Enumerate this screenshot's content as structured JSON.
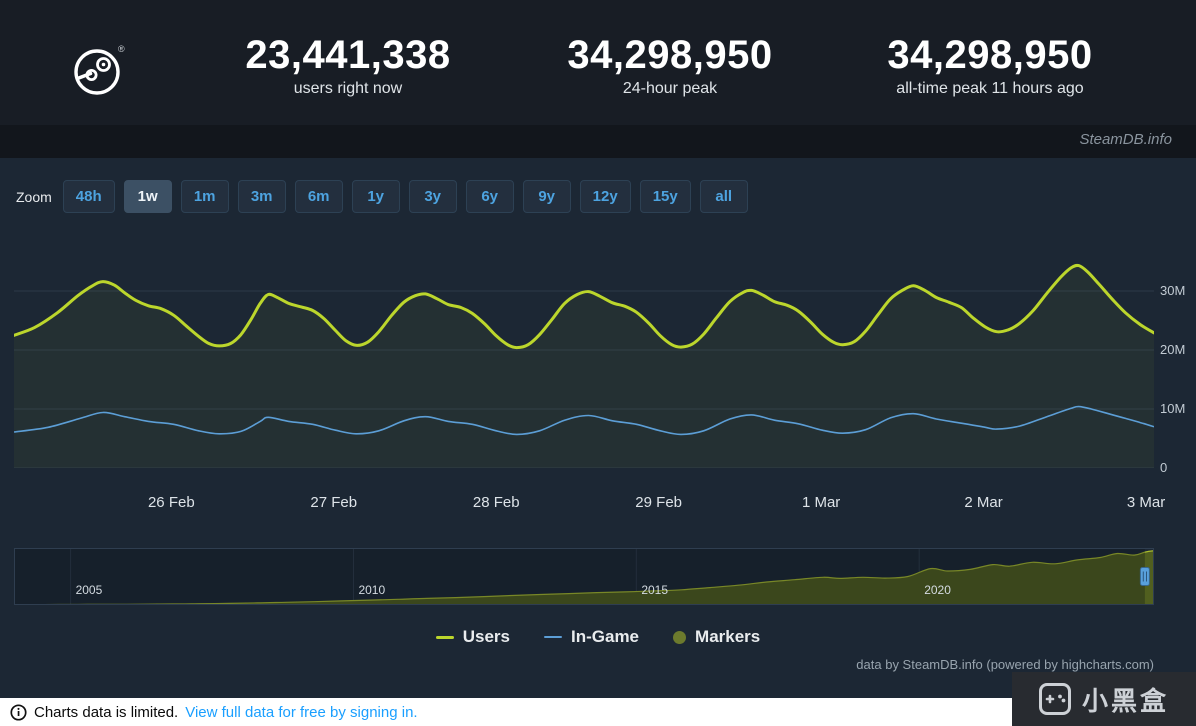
{
  "header": {
    "stats": [
      {
        "value": "23,441,338",
        "label": "users right now"
      },
      {
        "value": "34,298,950",
        "label": "24-hour peak"
      },
      {
        "value": "34,298,950",
        "label": "all-time peak 11 hours ago"
      }
    ],
    "brand": "SteamDB.info"
  },
  "zoom": {
    "label": "Zoom",
    "selected": "1w",
    "options": [
      "48h",
      "1w",
      "1m",
      "3m",
      "6m",
      "1y",
      "3y",
      "6y",
      "9y",
      "12y",
      "15y",
      "all"
    ]
  },
  "chart_data": {
    "type": "line",
    "x_categories": [
      "26 Feb",
      "27 Feb",
      "28 Feb",
      "29 Feb",
      "1 Mar",
      "2 Mar",
      "3 Mar"
    ],
    "x_first_tick_fraction": 0.138,
    "x_tick_step_fraction": 0.1425,
    "ylim": [
      0,
      40
    ],
    "y_unit": "M",
    "yticks": [
      {
        "value": 30,
        "label": "30M"
      },
      {
        "value": 20,
        "label": "20M"
      },
      {
        "value": 10,
        "label": "10M"
      },
      {
        "value": 0,
        "label": "0"
      }
    ],
    "series": [
      {
        "name": "Users",
        "color": "#bcd62c",
        "width": 3,
        "points": [
          [
            0.0,
            22.5
          ],
          [
            0.018,
            23.8
          ],
          [
            0.038,
            26.3
          ],
          [
            0.056,
            29.2
          ],
          [
            0.069,
            30.9
          ],
          [
            0.078,
            31.6
          ],
          [
            0.088,
            31.0
          ],
          [
            0.097,
            29.7
          ],
          [
            0.107,
            28.4
          ],
          [
            0.118,
            27.5
          ],
          [
            0.129,
            27.0
          ],
          [
            0.14,
            25.9
          ],
          [
            0.151,
            24.1
          ],
          [
            0.162,
            22.3
          ],
          [
            0.171,
            21.1
          ],
          [
            0.18,
            20.7
          ],
          [
            0.19,
            21.1
          ],
          [
            0.199,
            22.6
          ],
          [
            0.208,
            25.2
          ],
          [
            0.216,
            27.9
          ],
          [
            0.223,
            29.4
          ],
          [
            0.231,
            28.9
          ],
          [
            0.241,
            27.9
          ],
          [
            0.252,
            27.3
          ],
          [
            0.262,
            26.7
          ],
          [
            0.272,
            25.3
          ],
          [
            0.282,
            23.3
          ],
          [
            0.291,
            21.6
          ],
          [
            0.3,
            20.8
          ],
          [
            0.31,
            21.3
          ],
          [
            0.32,
            23.1
          ],
          [
            0.331,
            25.8
          ],
          [
            0.342,
            28.1
          ],
          [
            0.352,
            29.2
          ],
          [
            0.361,
            29.5
          ],
          [
            0.371,
            28.7
          ],
          [
            0.381,
            27.7
          ],
          [
            0.392,
            27.2
          ],
          [
            0.402,
            26.2
          ],
          [
            0.413,
            24.4
          ],
          [
            0.423,
            22.4
          ],
          [
            0.433,
            20.9
          ],
          [
            0.441,
            20.4
          ],
          [
            0.451,
            20.9
          ],
          [
            0.461,
            22.6
          ],
          [
            0.472,
            25.2
          ],
          [
            0.483,
            27.9
          ],
          [
            0.494,
            29.4
          ],
          [
            0.504,
            29.9
          ],
          [
            0.514,
            29.1
          ],
          [
            0.525,
            28.0
          ],
          [
            0.536,
            27.4
          ],
          [
            0.546,
            26.4
          ],
          [
            0.557,
            24.5
          ],
          [
            0.567,
            22.4
          ],
          [
            0.577,
            20.9
          ],
          [
            0.585,
            20.5
          ],
          [
            0.595,
            21.0
          ],
          [
            0.605,
            22.7
          ],
          [
            0.616,
            25.4
          ],
          [
            0.628,
            28.2
          ],
          [
            0.639,
            29.7
          ],
          [
            0.647,
            30.1
          ],
          [
            0.657,
            29.3
          ],
          [
            0.667,
            28.2
          ],
          [
            0.678,
            27.6
          ],
          [
            0.688,
            26.6
          ],
          [
            0.699,
            24.7
          ],
          [
            0.709,
            22.7
          ],
          [
            0.719,
            21.3
          ],
          [
            0.727,
            20.9
          ],
          [
            0.737,
            21.4
          ],
          [
            0.747,
            23.2
          ],
          [
            0.758,
            26.0
          ],
          [
            0.769,
            28.7
          ],
          [
            0.78,
            30.2
          ],
          [
            0.789,
            30.9
          ],
          [
            0.799,
            30.1
          ],
          [
            0.809,
            28.9
          ],
          [
            0.82,
            28.1
          ],
          [
            0.831,
            27.2
          ],
          [
            0.841,
            25.5
          ],
          [
            0.852,
            23.9
          ],
          [
            0.862,
            23.1
          ],
          [
            0.872,
            23.4
          ],
          [
            0.882,
            24.5
          ],
          [
            0.894,
            26.7
          ],
          [
            0.906,
            29.6
          ],
          [
            0.918,
            32.3
          ],
          [
            0.927,
            33.9
          ],
          [
            0.934,
            34.3
          ],
          [
            0.942,
            33.2
          ],
          [
            0.952,
            31.1
          ],
          [
            0.963,
            28.7
          ],
          [
            0.975,
            26.3
          ],
          [
            0.988,
            24.3
          ],
          [
            1.0,
            22.9
          ]
        ]
      },
      {
        "name": "In-Game",
        "color": "#5c9ed6",
        "width": 1.6,
        "points": [
          [
            0.0,
            6.1
          ],
          [
            0.03,
            6.9
          ],
          [
            0.058,
            8.4
          ],
          [
            0.078,
            9.4
          ],
          [
            0.097,
            8.7
          ],
          [
            0.118,
            7.9
          ],
          [
            0.14,
            7.4
          ],
          [
            0.162,
            6.3
          ],
          [
            0.18,
            5.8
          ],
          [
            0.199,
            6.2
          ],
          [
            0.216,
            7.9
          ],
          [
            0.223,
            8.6
          ],
          [
            0.241,
            7.9
          ],
          [
            0.262,
            7.4
          ],
          [
            0.282,
            6.4
          ],
          [
            0.3,
            5.8
          ],
          [
            0.32,
            6.3
          ],
          [
            0.342,
            8.0
          ],
          [
            0.361,
            8.7
          ],
          [
            0.381,
            7.9
          ],
          [
            0.402,
            7.4
          ],
          [
            0.423,
            6.3
          ],
          [
            0.441,
            5.7
          ],
          [
            0.461,
            6.3
          ],
          [
            0.483,
            8.1
          ],
          [
            0.504,
            8.9
          ],
          [
            0.525,
            8.0
          ],
          [
            0.546,
            7.4
          ],
          [
            0.567,
            6.3
          ],
          [
            0.585,
            5.7
          ],
          [
            0.605,
            6.3
          ],
          [
            0.628,
            8.3
          ],
          [
            0.647,
            9.0
          ],
          [
            0.667,
            8.1
          ],
          [
            0.688,
            7.5
          ],
          [
            0.709,
            6.4
          ],
          [
            0.727,
            5.9
          ],
          [
            0.747,
            6.5
          ],
          [
            0.769,
            8.5
          ],
          [
            0.789,
            9.2
          ],
          [
            0.809,
            8.3
          ],
          [
            0.831,
            7.6
          ],
          [
            0.852,
            6.9
          ],
          [
            0.862,
            6.6
          ],
          [
            0.882,
            7.1
          ],
          [
            0.906,
            8.7
          ],
          [
            0.927,
            10.1
          ],
          [
            0.934,
            10.4
          ],
          [
            0.945,
            10.0
          ],
          [
            0.96,
            9.2
          ],
          [
            0.975,
            8.4
          ],
          [
            0.988,
            7.7
          ],
          [
            1.0,
            7.0
          ]
        ]
      }
    ],
    "navigator": {
      "xlim": [
        2004.0,
        2024.15
      ],
      "ymax": 36,
      "year_ticks": [
        "2005",
        "2010",
        "2015",
        "2020"
      ],
      "selected_from_fraction": 0.992,
      "line_color": "#a8bb2e",
      "fill_color": "#515f1f",
      "points": [
        [
          2004.0,
          0.2
        ],
        [
          2004.4,
          0.25
        ],
        [
          2004.8,
          0.3
        ],
        [
          2005.3,
          0.35
        ],
        [
          2005.8,
          0.4
        ],
        [
          2006.3,
          0.5
        ],
        [
          2006.8,
          0.6
        ],
        [
          2007.3,
          0.8
        ],
        [
          2007.8,
          1.0
        ],
        [
          2008.3,
          1.3
        ],
        [
          2008.8,
          1.7
        ],
        [
          2009.3,
          2.1
        ],
        [
          2009.8,
          2.6
        ],
        [
          2010.3,
          3.1
        ],
        [
          2010.8,
          3.6
        ],
        [
          2011.3,
          4.2
        ],
        [
          2011.8,
          4.7
        ],
        [
          2012.3,
          5.3
        ],
        [
          2012.8,
          6.0
        ],
        [
          2013.3,
          6.6
        ],
        [
          2013.8,
          7.2
        ],
        [
          2014.3,
          7.8
        ],
        [
          2014.8,
          8.3
        ],
        [
          2015.3,
          8.9
        ],
        [
          2015.8,
          9.6
        ],
        [
          2016.3,
          11.0
        ],
        [
          2016.8,
          12.5
        ],
        [
          2017.3,
          14.5
        ],
        [
          2017.8,
          16.0
        ],
        [
          2018.3,
          17.5
        ],
        [
          2018.6,
          16.8
        ],
        [
          2019.0,
          17.5
        ],
        [
          2019.4,
          17.0
        ],
        [
          2019.8,
          18.0
        ],
        [
          2020.2,
          23.0
        ],
        [
          2020.5,
          21.5
        ],
        [
          2020.9,
          22.5
        ],
        [
          2021.3,
          25.5
        ],
        [
          2021.6,
          24.5
        ],
        [
          2022.0,
          27.0
        ],
        [
          2022.4,
          26.0
        ],
        [
          2022.8,
          28.5
        ],
        [
          2023.2,
          30.0
        ],
        [
          2023.5,
          32.5
        ],
        [
          2023.8,
          31.5
        ],
        [
          2024.0,
          33.5
        ],
        [
          2024.15,
          34.3
        ]
      ]
    }
  },
  "legend": [
    {
      "label": "Users",
      "type": "line",
      "color": "#bcd62c",
      "thickness": 3
    },
    {
      "label": "In-Game",
      "type": "line",
      "color": "#5c9ed6",
      "thickness": 2
    },
    {
      "label": "Markers",
      "type": "circle",
      "color": "#6c7a2d",
      "size": 13
    }
  ],
  "credit": "data by SteamDB.info (powered by highcharts.com)",
  "footer": {
    "notice": "Charts data is limited.",
    "link": "View full data for free by signing in."
  },
  "watermark": {
    "text": "小黑盒"
  }
}
